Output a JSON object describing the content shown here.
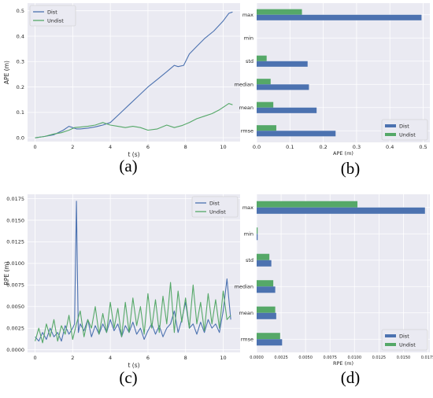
{
  "colors": {
    "dist": "#4c72b0",
    "undist": "#55a868",
    "plot_bg": "#eaeaf2",
    "grid": "#ffffff",
    "text": "#262626"
  },
  "panel_labels": [
    "(a)",
    "(b)",
    "(c)",
    "(d)"
  ],
  "chart_data": [
    {
      "id": "a",
      "type": "line",
      "xlabel": "t (s)",
      "ylabel": "APE (m)",
      "xlim": [
        -0.4,
        10.9
      ],
      "ylim": [
        -0.015,
        0.53
      ],
      "xticks": [
        0,
        2,
        4,
        6,
        8,
        10
      ],
      "yticks": [
        0.0,
        0.1,
        0.2,
        0.3,
        0.4,
        0.5
      ],
      "legend": "top-left",
      "series": [
        {
          "name": "Dist",
          "x": [
            0,
            0.5,
            1.0,
            1.5,
            1.8,
            2.0,
            2.2,
            2.4,
            2.8,
            3.2,
            3.6,
            4.0,
            4.5,
            5.0,
            5.5,
            6.0,
            6.5,
            7.0,
            7.4,
            7.6,
            7.9,
            8.2,
            8.6,
            9.0,
            9.5,
            10.0,
            10.3,
            10.5
          ],
          "y": [
            0.0,
            0.005,
            0.012,
            0.03,
            0.045,
            0.04,
            0.035,
            0.035,
            0.038,
            0.043,
            0.05,
            0.06,
            0.095,
            0.13,
            0.165,
            0.2,
            0.23,
            0.26,
            0.285,
            0.28,
            0.285,
            0.33,
            0.36,
            0.39,
            0.42,
            0.46,
            0.49,
            0.495
          ]
        },
        {
          "name": "Undist",
          "x": [
            0,
            0.5,
            1.0,
            1.4,
            1.8,
            2.1,
            2.4,
            2.8,
            3.2,
            3.6,
            4.0,
            4.4,
            4.8,
            5.2,
            5.6,
            6.0,
            6.5,
            7.0,
            7.4,
            7.8,
            8.2,
            8.6,
            9.0,
            9.4,
            9.8,
            10.1,
            10.3,
            10.5
          ],
          "y": [
            0.0,
            0.005,
            0.015,
            0.02,
            0.03,
            0.04,
            0.042,
            0.045,
            0.05,
            0.06,
            0.05,
            0.045,
            0.04,
            0.045,
            0.04,
            0.03,
            0.035,
            0.05,
            0.04,
            0.048,
            0.06,
            0.075,
            0.085,
            0.095,
            0.11,
            0.125,
            0.135,
            0.13
          ]
        }
      ]
    },
    {
      "id": "b",
      "type": "bar",
      "orientation": "horizontal",
      "xlabel": "APE (m)",
      "ylabel": "",
      "xlim": [
        0,
        0.52
      ],
      "xticks": [
        0.0,
        0.1,
        0.2,
        0.3,
        0.4,
        0.5
      ],
      "categories": [
        "max",
        "min",
        "std",
        "median",
        "mean",
        "rmse"
      ],
      "legend": "bottom-right",
      "series": [
        {
          "name": "Dist",
          "values": [
            0.495,
            0.0,
            0.153,
            0.157,
            0.18,
            0.237
          ]
        },
        {
          "name": "Undist",
          "values": [
            0.136,
            0.0,
            0.03,
            0.042,
            0.05,
            0.059
          ]
        }
      ]
    },
    {
      "id": "c",
      "type": "line",
      "xlabel": "t (s)",
      "ylabel": "RPE (m)",
      "xlim": [
        -0.4,
        10.9
      ],
      "ylim": [
        -0.0003,
        0.018
      ],
      "xticks": [
        0,
        2,
        4,
        6,
        8,
        10
      ],
      "yticks": [
        0.0,
        0.0025,
        0.005,
        0.0075,
        0.01,
        0.0125,
        0.015,
        0.0175
      ],
      "ytick_labels": [
        "0.0000",
        "0.0025",
        "0.0050",
        "0.0075",
        "0.0100",
        "0.0125",
        "0.0150",
        "0.0175"
      ],
      "legend": "top-right",
      "series": [
        {
          "name": "Dist",
          "x": [
            0,
            0.2,
            0.4,
            0.6,
            0.8,
            1.0,
            1.2,
            1.4,
            1.6,
            1.8,
            2.0,
            2.1,
            2.2,
            2.25,
            2.3,
            2.4,
            2.6,
            2.8,
            3.0,
            3.2,
            3.4,
            3.6,
            3.8,
            4.0,
            4.2,
            4.4,
            4.6,
            4.8,
            5.0,
            5.2,
            5.4,
            5.6,
            5.8,
            6.0,
            6.2,
            6.4,
            6.6,
            6.8,
            7.0,
            7.2,
            7.4,
            7.6,
            7.8,
            8.0,
            8.2,
            8.4,
            8.6,
            8.8,
            9.0,
            9.2,
            9.4,
            9.6,
            9.8,
            10.0,
            10.2,
            10.4
          ],
          "y": [
            0.0015,
            0.001,
            0.002,
            0.0012,
            0.0025,
            0.0015,
            0.002,
            0.001,
            0.0028,
            0.0018,
            0.0025,
            0.003,
            0.0172,
            0.009,
            0.002,
            0.003,
            0.0022,
            0.0035,
            0.0015,
            0.0028,
            0.0018,
            0.003,
            0.002,
            0.0035,
            0.0022,
            0.003,
            0.0015,
            0.0028,
            0.002,
            0.0032,
            0.0018,
            0.0025,
            0.0012,
            0.0022,
            0.003,
            0.0018,
            0.0028,
            0.0015,
            0.0025,
            0.003,
            0.0045,
            0.002,
            0.0035,
            0.0055,
            0.0025,
            0.003,
            0.0018,
            0.0032,
            0.002,
            0.0035,
            0.0025,
            0.003,
            0.002,
            0.0045,
            0.0082,
            0.0035
          ]
        },
        {
          "name": "Undist",
          "x": [
            0,
            0.2,
            0.4,
            0.6,
            0.8,
            1.0,
            1.2,
            1.4,
            1.6,
            1.8,
            2.0,
            2.2,
            2.4,
            2.6,
            2.8,
            3.0,
            3.2,
            3.4,
            3.6,
            3.8,
            4.0,
            4.2,
            4.4,
            4.6,
            4.8,
            5.0,
            5.2,
            5.4,
            5.6,
            5.8,
            6.0,
            6.2,
            6.4,
            6.6,
            6.8,
            7.0,
            7.2,
            7.4,
            7.6,
            7.8,
            8.0,
            8.2,
            8.4,
            8.6,
            8.8,
            9.0,
            9.2,
            9.4,
            9.6,
            9.8,
            10.0,
            10.2,
            10.4
          ],
          "y": [
            0.001,
            0.0025,
            0.0008,
            0.003,
            0.0015,
            0.0035,
            0.001,
            0.0028,
            0.0018,
            0.004,
            0.0012,
            0.003,
            0.0045,
            0.0015,
            0.0035,
            0.0025,
            0.005,
            0.0018,
            0.0042,
            0.002,
            0.0055,
            0.0025,
            0.0048,
            0.0015,
            0.0055,
            0.002,
            0.006,
            0.0028,
            0.005,
            0.0018,
            0.0065,
            0.0025,
            0.0058,
            0.002,
            0.0062,
            0.003,
            0.0078,
            0.002,
            0.0068,
            0.0032,
            0.006,
            0.0025,
            0.0075,
            0.003,
            0.0055,
            0.0022,
            0.0065,
            0.003,
            0.0058,
            0.0025,
            0.0068,
            0.0035,
            0.004
          ]
        }
      ]
    },
    {
      "id": "d",
      "type": "bar",
      "orientation": "horizontal",
      "xlabel": "RPE (m)",
      "ylabel": "",
      "xlim": [
        0,
        0.0177
      ],
      "xticks": [
        0.0,
        0.0025,
        0.005,
        0.0075,
        0.01,
        0.0125,
        0.015,
        0.0175
      ],
      "xtick_labels": [
        "0.0000",
        "0.0025",
        "0.0050",
        "0.0075",
        "0.0100",
        "0.0125",
        "0.0150",
        "0.0175"
      ],
      "categories": [
        "max",
        "min",
        "std",
        "median",
        "mean",
        "rmse"
      ],
      "legend": "bottom-right",
      "series": [
        {
          "name": "Dist",
          "values": [
            0.0172,
            0.0001,
            0.0015,
            0.0019,
            0.002,
            0.0026
          ]
        },
        {
          "name": "Undist",
          "values": [
            0.0103,
            0.0001,
            0.0013,
            0.0017,
            0.0019,
            0.0024
          ]
        }
      ]
    }
  ]
}
